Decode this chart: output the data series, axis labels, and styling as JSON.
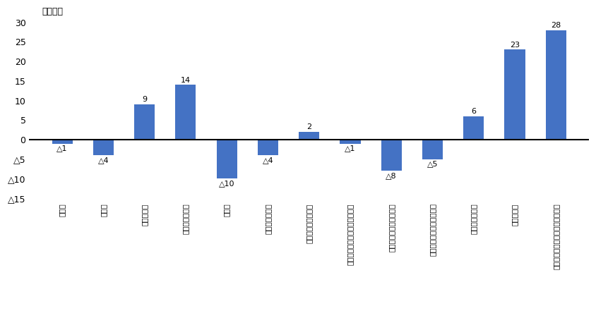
{
  "categories": [
    "建設業",
    "製造業",
    "情報通信業",
    "郵便業・運輸業",
    "卸売業",
    "金融業・保険業",
    "不動産業物品賌貟業",
    "学術研究・専門技術サービス業",
    "宿泊業・飲食サービス業",
    "生活関連サービス・娯楽業",
    "教育・学習支援",
    "医療・福祉",
    "サービス業他に分類されないもの"
  ],
  "values": [
    -1,
    -4,
    9,
    14,
    -10,
    -4,
    2,
    -1,
    -8,
    -5,
    6,
    23,
    28
  ],
  "bar_color": "#4472C4",
  "ylabel": "（千人）",
  "ylim": [
    -16,
    32
  ],
  "ytick_vals": [
    30,
    25,
    20,
    15,
    10,
    5,
    0,
    -5,
    -10,
    -15
  ],
  "background_color": "#ffffff",
  "bar_width": 0.5
}
